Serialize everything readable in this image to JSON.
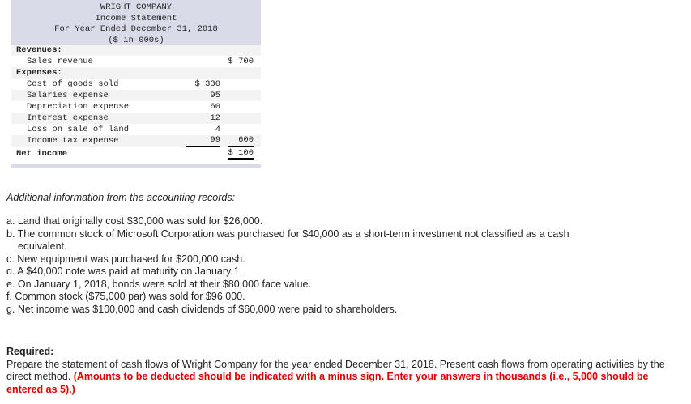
{
  "statement": {
    "title": "WRIGHT COMPANY",
    "subtitle": "Income Statement",
    "period": "For Year Ended December 31, 2018",
    "units": "($ in 000s)",
    "revenues_label": "Revenues:",
    "sales": {
      "label": "Sales revenue",
      "amount": "$ 700"
    },
    "expenses_label": "Expenses:",
    "expenses": [
      {
        "label": "Cost of goods sold",
        "amount": "$ 330"
      },
      {
        "label": "Salaries expense",
        "amount": "95"
      },
      {
        "label": "Depreciation expense",
        "amount": "60"
      },
      {
        "label": "Interest expense",
        "amount": "12"
      },
      {
        "label": "Loss on sale of land",
        "amount": "4"
      },
      {
        "label": "Income tax expense",
        "amount": "99"
      }
    ],
    "total_expenses": "600",
    "net_income": {
      "label": "Net income",
      "amount": "$ 100"
    }
  },
  "additional": {
    "heading": "Additional information from the accounting records:",
    "items": [
      "a. Land that originally cost $30,000 was sold for $26,000.",
      "b. The common stock of Microsoft Corporation was purchased for $40,000 as a short-term investment not classified as a cash",
      "equivalent.",
      "c. New equipment was purchased for $200,000 cash.",
      "d. A $40,000 note was paid at maturity on January 1.",
      "e. On January 1, 2018, bonds were sold at their $80,000 face value.",
      "f. Common stock ($75,000 par) was sold for $96,000.",
      "g. Net income was $100,000 and cash dividends of $60,000 were paid to shareholders."
    ]
  },
  "required": {
    "heading": "Required:",
    "text": "Prepare the statement of cash flows of Wright Company for the year ended December 31, 2018. Present cash flows from operating activities by the direct method. ",
    "instruction": "(Amounts to be deducted should be indicated with a minus sign. Enter your answers in thousands (i.e., 5,000 should be entered as 5).)"
  }
}
